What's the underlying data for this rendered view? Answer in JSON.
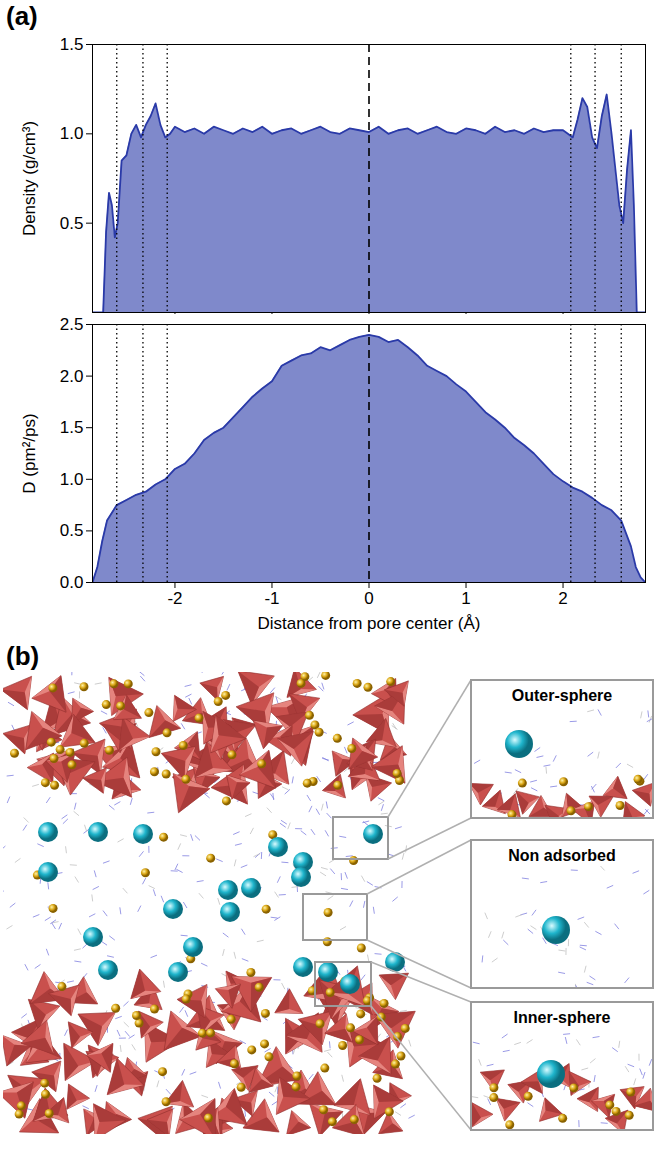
{
  "chart_data": [
    {
      "type": "area",
      "title": "(a)",
      "ylabel": "Density (g/cm³)",
      "color": "#2a3aa8",
      "xlim": [
        -2.85,
        2.85
      ],
      "xticks": [
        -2,
        -1,
        0,
        1,
        2
      ],
      "ylim": [
        0,
        1.5
      ],
      "yticks": [
        0.5,
        {
          "value": 1,
          "label": "1.0"
        },
        1.5
      ],
      "tick_labels": "y",
      "reference_lines": [
        {
          "x": -2.6,
          "line_style": "dotted"
        },
        {
          "x": -2.33,
          "line_style": "dotted"
        },
        {
          "x": -2.08,
          "line_style": "dotted"
        },
        {
          "x": 0,
          "line_style": "dashed"
        },
        {
          "x": 2.08,
          "line_style": "dotted"
        },
        {
          "x": 2.33,
          "line_style": "dotted"
        },
        {
          "x": 2.6,
          "line_style": "dotted"
        }
      ],
      "x": [
        -2.85,
        -2.74,
        -2.71,
        -2.68,
        -2.65,
        -2.62,
        -2.59,
        -2.55,
        -2.5,
        -2.45,
        -2.4,
        -2.35,
        -2.3,
        -2.25,
        -2.2,
        -2.15,
        -2.1,
        -2.05,
        -2.0,
        -1.9,
        -1.8,
        -1.7,
        -1.6,
        -1.5,
        -1.4,
        -1.3,
        -1.2,
        -1.1,
        -1.0,
        -0.9,
        -0.8,
        -0.7,
        -0.6,
        -0.5,
        -0.4,
        -0.3,
        -0.2,
        -0.1,
        0,
        0.1,
        0.2,
        0.3,
        0.4,
        0.5,
        0.6,
        0.7,
        0.8,
        0.9,
        1.0,
        1.1,
        1.2,
        1.3,
        1.4,
        1.5,
        1.6,
        1.7,
        1.8,
        1.9,
        2.0,
        2.05,
        2.1,
        2.15,
        2.2,
        2.25,
        2.3,
        2.35,
        2.4,
        2.45,
        2.5,
        2.55,
        2.58,
        2.62,
        2.66,
        2.7,
        2.73,
        2.76,
        2.85
      ],
      "values": [
        0,
        0,
        0.45,
        0.67,
        0.6,
        0.42,
        0.5,
        0.85,
        0.88,
        1.0,
        1.05,
        0.98,
        1.05,
        1.1,
        1.17,
        1.05,
        0.98,
        1.0,
        1.04,
        1.01,
        1.03,
        1.0,
        1.04,
        1.02,
        1.0,
        1.03,
        1.01,
        1.04,
        1.0,
        1.02,
        1.03,
        1.0,
        1.02,
        1.04,
        1.01,
        1.0,
        1.03,
        1.02,
        1.01,
        1.04,
        1.0,
        1.02,
        1.03,
        1.0,
        1.02,
        1.04,
        1.01,
        1.0,
        1.03,
        1.02,
        1.0,
        1.04,
        1.01,
        1.02,
        1.0,
        1.03,
        1.01,
        1.02,
        1.02,
        1.0,
        0.98,
        1.08,
        1.2,
        1.15,
        0.98,
        0.92,
        1.1,
        1.22,
        1.0,
        0.75,
        0.6,
        0.5,
        0.8,
        1.02,
        0.6,
        0,
        0
      ]
    },
    {
      "type": "area",
      "xlabel": "Distance from pore center (Å)",
      "ylabel": "D (pm²/ps)",
      "color": "#2a3aa8",
      "xlim": [
        -2.85,
        2.85
      ],
      "xticks": [
        -2,
        -1,
        0,
        1,
        2
      ],
      "ylim": [
        0,
        2.5
      ],
      "yticks": [
        {
          "value": 0,
          "label": "0.0"
        },
        0.5,
        {
          "value": 1,
          "label": "1.0"
        },
        1.5,
        {
          "value": 2,
          "label": "2.0"
        },
        2.5
      ],
      "reference_lines": [
        {
          "x": -2.6,
          "line_style": "dotted"
        },
        {
          "x": -2.33,
          "line_style": "dotted"
        },
        {
          "x": -2.08,
          "line_style": "dotted"
        },
        {
          "x": 0,
          "line_style": "dashed"
        },
        {
          "x": 2.08,
          "line_style": "dotted"
        },
        {
          "x": 2.33,
          "line_style": "dotted"
        },
        {
          "x": 2.6,
          "line_style": "dotted"
        }
      ],
      "x": [
        -2.85,
        -2.8,
        -2.75,
        -2.7,
        -2.6,
        -2.5,
        -2.4,
        -2.3,
        -2.2,
        -2.1,
        -2.0,
        -1.9,
        -1.8,
        -1.7,
        -1.6,
        -1.5,
        -1.4,
        -1.3,
        -1.2,
        -1.1,
        -1.0,
        -0.9,
        -0.8,
        -0.7,
        -0.6,
        -0.5,
        -0.4,
        -0.3,
        -0.2,
        -0.1,
        0,
        0.1,
        0.2,
        0.3,
        0.4,
        0.5,
        0.6,
        0.7,
        0.8,
        0.9,
        1.0,
        1.1,
        1.2,
        1.3,
        1.4,
        1.5,
        1.6,
        1.7,
        1.8,
        1.9,
        2.0,
        2.1,
        2.2,
        2.3,
        2.4,
        2.5,
        2.6,
        2.7,
        2.75,
        2.8,
        2.85
      ],
      "values": [
        0,
        0.15,
        0.4,
        0.6,
        0.75,
        0.8,
        0.85,
        0.88,
        0.95,
        1.0,
        1.1,
        1.15,
        1.25,
        1.38,
        1.45,
        1.5,
        1.6,
        1.7,
        1.8,
        1.88,
        1.95,
        2.1,
        2.15,
        2.2,
        2.22,
        2.28,
        2.25,
        2.3,
        2.35,
        2.38,
        2.4,
        2.38,
        2.33,
        2.35,
        2.28,
        2.2,
        2.1,
        2.05,
        2.0,
        1.92,
        1.85,
        1.75,
        1.65,
        1.58,
        1.5,
        1.4,
        1.33,
        1.25,
        1.15,
        1.05,
        0.98,
        0.92,
        0.88,
        0.82,
        0.75,
        0.7,
        0.6,
        0.35,
        0.15,
        0.05,
        0
      ]
    }
  ],
  "figure": {
    "panel_b": {
      "label": "(b)",
      "insets": [
        "Outer-sphere",
        "Non adsorbed",
        "Inner-sphere"
      ]
    }
  }
}
